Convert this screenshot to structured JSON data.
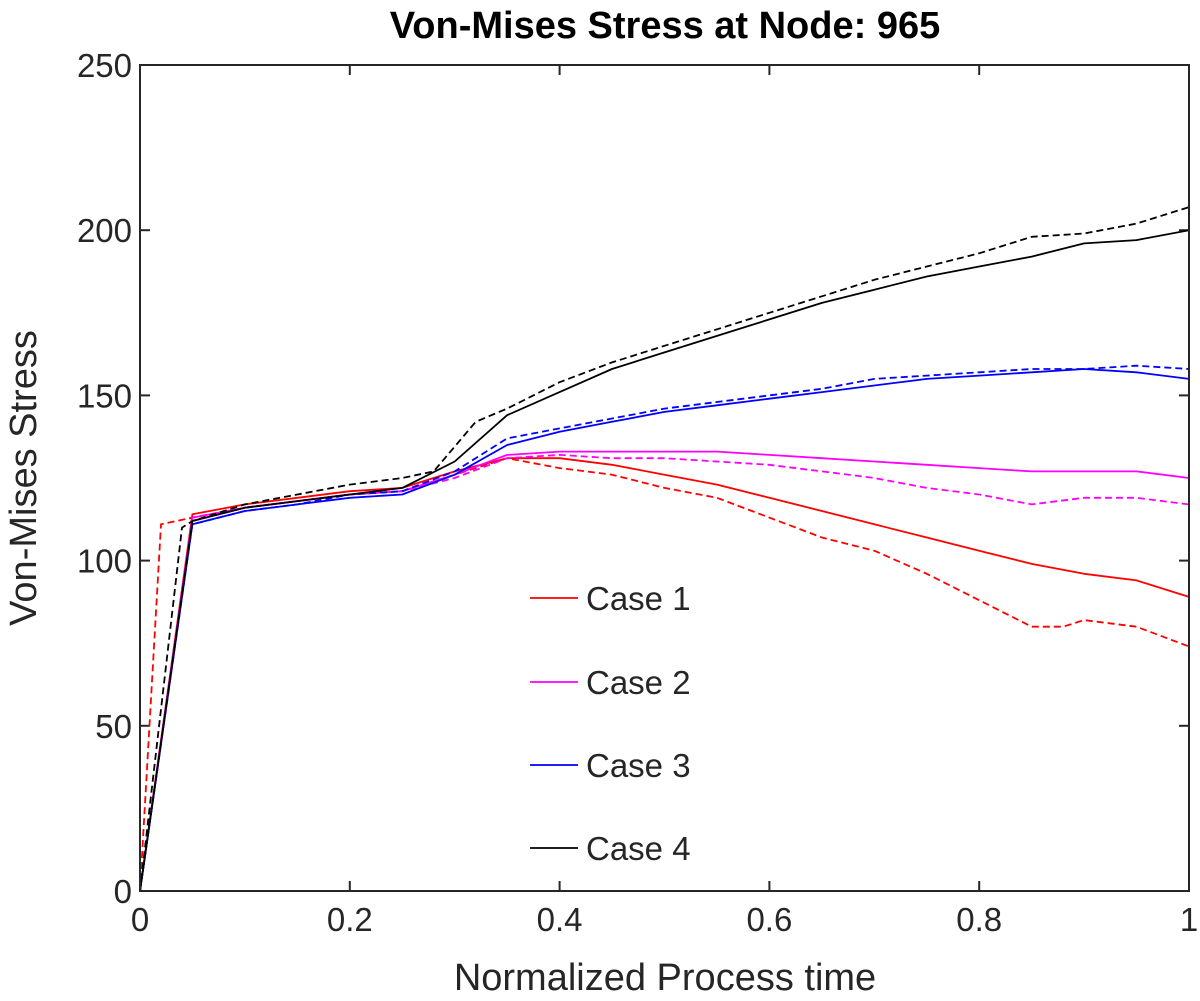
{
  "chart_data": {
    "type": "line",
    "title": "Von-Mises Stress at Node: 965",
    "xlabel": "Normalized Process time",
    "ylabel": "Von-Mises Stress",
    "xlim": [
      0,
      1
    ],
    "ylim": [
      0,
      250
    ],
    "x_ticks": [
      "0",
      "0.2",
      "0.4",
      "0.6",
      "0.8",
      "1"
    ],
    "y_ticks": [
      "0",
      "50",
      "100",
      "150",
      "200",
      "250"
    ],
    "grid": false,
    "legend_position": "center",
    "series": [
      {
        "name": "Case 1",
        "color": "#ff0000",
        "style": "solid",
        "x": [
          0,
          0.05,
          0.1,
          0.15,
          0.2,
          0.25,
          0.3,
          0.35,
          0.4,
          0.45,
          0.5,
          0.55,
          0.6,
          0.65,
          0.7,
          0.75,
          0.8,
          0.85,
          0.9,
          0.95,
          1.0
        ],
        "y": [
          0,
          114,
          117,
          119,
          121,
          122,
          127,
          131,
          131,
          129,
          126,
          123,
          119,
          115,
          111,
          107,
          103,
          99,
          96,
          94,
          89
        ]
      },
      {
        "name": "Case 1 (dashed)",
        "color": "#ff0000",
        "style": "dashed",
        "x": [
          0,
          0.02,
          0.05,
          0.1,
          0.15,
          0.2,
          0.25,
          0.3,
          0.35,
          0.4,
          0.45,
          0.5,
          0.55,
          0.6,
          0.65,
          0.7,
          0.75,
          0.8,
          0.85,
          0.88,
          0.9,
          0.95,
          1.0
        ],
        "y": [
          0,
          111,
          113,
          116,
          118,
          120,
          121,
          126,
          131,
          128,
          126,
          122,
          119,
          113,
          107,
          103,
          96,
          88,
          80,
          80,
          82,
          80,
          74
        ]
      },
      {
        "name": "Case 2",
        "color": "#ff00ff",
        "style": "solid",
        "x": [
          0,
          0.05,
          0.1,
          0.15,
          0.2,
          0.25,
          0.3,
          0.35,
          0.4,
          0.45,
          0.5,
          0.55,
          0.6,
          0.65,
          0.7,
          0.75,
          0.8,
          0.85,
          0.9,
          0.95,
          1.0
        ],
        "y": [
          0,
          113,
          116,
          118,
          120,
          121,
          126,
          132,
          133,
          133,
          133,
          133,
          132,
          131,
          130,
          129,
          128,
          127,
          127,
          127,
          125
        ]
      },
      {
        "name": "Case 2 (dashed)",
        "color": "#ff00ff",
        "style": "dashed",
        "x": [
          0,
          0.05,
          0.1,
          0.15,
          0.2,
          0.25,
          0.3,
          0.35,
          0.4,
          0.45,
          0.5,
          0.55,
          0.6,
          0.65,
          0.7,
          0.75,
          0.8,
          0.85,
          0.9,
          0.95,
          1.0
        ],
        "y": [
          0,
          112,
          116,
          118,
          120,
          121,
          125,
          131,
          132,
          131,
          131,
          130,
          129,
          127,
          125,
          122,
          120,
          117,
          119,
          119,
          117
        ]
      },
      {
        "name": "Case 3",
        "color": "#0000ff",
        "style": "solid",
        "x": [
          0,
          0.05,
          0.1,
          0.15,
          0.2,
          0.25,
          0.3,
          0.35,
          0.4,
          0.45,
          0.5,
          0.55,
          0.6,
          0.65,
          0.7,
          0.75,
          0.8,
          0.85,
          0.9,
          0.95,
          1.0
        ],
        "y": [
          0,
          111,
          115,
          117,
          119,
          120,
          126,
          135,
          139,
          142,
          145,
          147,
          149,
          151,
          153,
          155,
          156,
          157,
          158,
          157,
          155
        ]
      },
      {
        "name": "Case 3 (dashed)",
        "color": "#0000ff",
        "style": "dashed",
        "x": [
          0,
          0.05,
          0.1,
          0.15,
          0.2,
          0.25,
          0.3,
          0.35,
          0.4,
          0.45,
          0.5,
          0.55,
          0.6,
          0.65,
          0.7,
          0.75,
          0.8,
          0.85,
          0.9,
          0.95,
          1.0
        ],
        "y": [
          0,
          111,
          115,
          117,
          120,
          121,
          127,
          137,
          140,
          143,
          146,
          148,
          150,
          152,
          155,
          156,
          157,
          158,
          158,
          159,
          158
        ]
      },
      {
        "name": "Case 4",
        "color": "#000000",
        "style": "solid",
        "x": [
          0,
          0.05,
          0.1,
          0.15,
          0.2,
          0.25,
          0.3,
          0.35,
          0.4,
          0.45,
          0.5,
          0.55,
          0.6,
          0.65,
          0.7,
          0.75,
          0.8,
          0.85,
          0.9,
          0.95,
          1.0
        ],
        "y": [
          0,
          112,
          116,
          118,
          120,
          122,
          130,
          144,
          151,
          158,
          163,
          168,
          173,
          178,
          182,
          186,
          189,
          192,
          196,
          197,
          200
        ]
      },
      {
        "name": "Case 4 (dashed)",
        "color": "#000000",
        "style": "dashed",
        "x": [
          0,
          0.04,
          0.05,
          0.1,
          0.15,
          0.2,
          0.25,
          0.28,
          0.32,
          0.35,
          0.4,
          0.45,
          0.5,
          0.55,
          0.6,
          0.65,
          0.7,
          0.75,
          0.8,
          0.85,
          0.9,
          0.95,
          1.0
        ],
        "y": [
          0,
          110,
          112,
          117,
          120,
          123,
          125,
          127,
          142,
          146,
          154,
          160,
          165,
          170,
          175,
          180,
          185,
          189,
          193,
          198,
          199,
          202,
          207
        ]
      }
    ],
    "legend": [
      {
        "label": "Case 1",
        "color": "#ff0000"
      },
      {
        "label": "Case 2",
        "color": "#ff00ff"
      },
      {
        "label": "Case 3",
        "color": "#0000ff"
      },
      {
        "label": "Case 4",
        "color": "#000000"
      }
    ]
  }
}
